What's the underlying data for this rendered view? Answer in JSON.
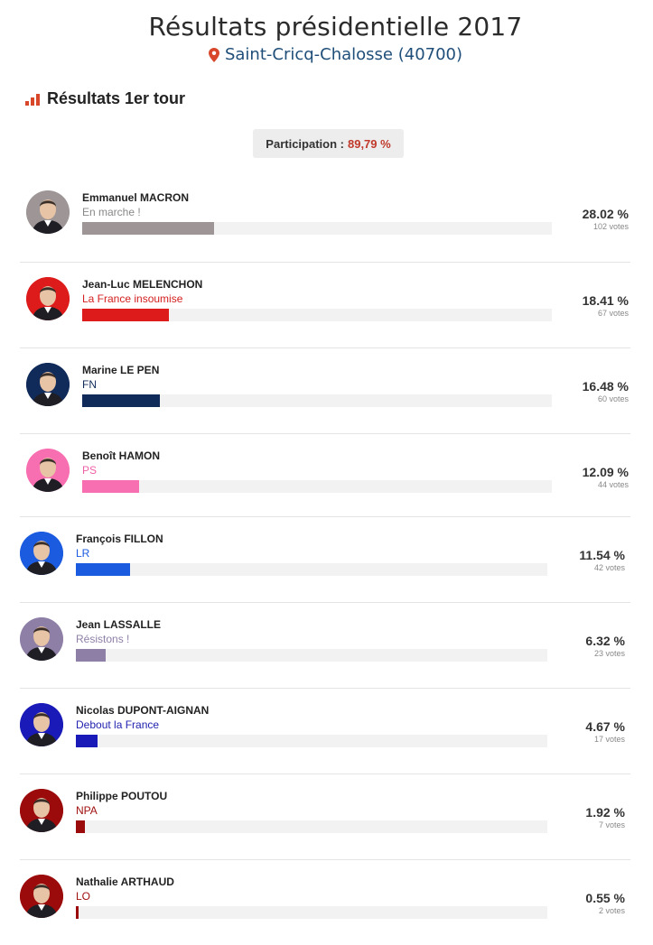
{
  "header": {
    "title": "Résultats présidentielle 2017",
    "location": "Saint-Cricq-Chalosse (40700)"
  },
  "section": {
    "title": "Résultats 1er tour"
  },
  "participation": {
    "label": "Participation :",
    "value": "89,79 %"
  },
  "candidates": [
    {
      "name": "Emmanuel MACRON",
      "party": "En marche !",
      "percent": 28.02,
      "percent_label": "28.02 %",
      "votes": "102 votes",
      "color": "#9e9696",
      "party_color": "#888888"
    },
    {
      "name": "Jean-Luc MELENCHON",
      "party": "La France insoumise",
      "percent": 18.41,
      "percent_label": "18.41 %",
      "votes": "67 votes",
      "color": "#dd1b1b",
      "party_color": "#d42020"
    },
    {
      "name": "Marine LE PEN",
      "party": "FN",
      "percent": 16.48,
      "percent_label": "16.48 %",
      "votes": "60 votes",
      "color": "#102a5a",
      "party_color": "#102a5a"
    },
    {
      "name": "Benoît HAMON",
      "party": "PS",
      "percent": 12.09,
      "percent_label": "12.09 %",
      "votes": "44 votes",
      "color": "#f76fb0",
      "party_color": "#f060a8"
    },
    {
      "name": "François FILLON",
      "party": "LR",
      "percent": 11.54,
      "percent_label": "11.54 %",
      "votes": "42 votes",
      "color": "#1a5be0",
      "party_color": "#1a5be0"
    },
    {
      "name": "Jean LASSALLE",
      "party": "Résistons !",
      "percent": 6.32,
      "percent_label": "6.32 %",
      "votes": "23 votes",
      "color": "#8e7fa6",
      "party_color": "#8e7fa6"
    },
    {
      "name": "Nicolas DUPONT-AIGNAN",
      "party": "Debout la France",
      "percent": 4.67,
      "percent_label": "4.67 %",
      "votes": "17 votes",
      "color": "#1a1ab8",
      "party_color": "#2222b0"
    },
    {
      "name": "Philippe POUTOU",
      "party": "NPA",
      "percent": 1.92,
      "percent_label": "1.92 %",
      "votes": "7 votes",
      "color": "#9b0b0b",
      "party_color": "#a01010"
    },
    {
      "name": "Nathalie ARTHAUD",
      "party": "LO",
      "percent": 0.55,
      "percent_label": "0.55 %",
      "votes": "2 votes",
      "color": "#9b0b0b",
      "party_color": "#a01010"
    }
  ],
  "colors": {
    "accent": "#c0392b",
    "location": "#1f4e79"
  },
  "icons": {
    "location": "map-pin-icon",
    "section": "bar-chart-icon",
    "avatar": "candidate-avatar-icon"
  }
}
